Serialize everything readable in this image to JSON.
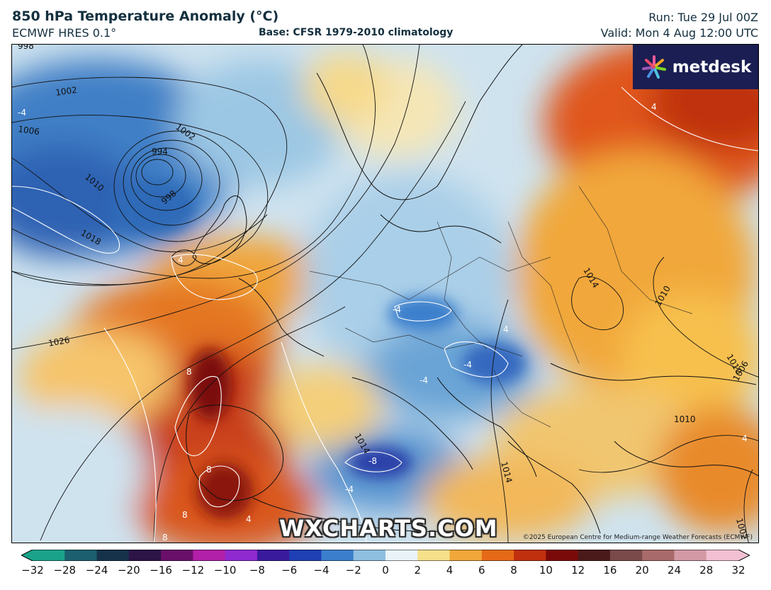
{
  "header": {
    "title": "850 hPa Temperature Anomaly (°C)",
    "model": "ECMWF HRES 0.1°",
    "base": "Base: CFSR 1979-2010 climatology",
    "run": "Run: Tue 29 Jul 00Z",
    "valid": "Valid: Mon 4 Aug 12:00 UTC"
  },
  "logo": {
    "text": "metdesk",
    "icon": "metdesk-star-icon"
  },
  "watermark": "WXCHARTS.COM",
  "copyright": "©2025 European Centre for Medium-range Weather Forecasts (ECMWF)",
  "isobar_labels": [
    "998",
    "1002",
    "1006",
    "1002",
    "994",
    "1010",
    "998",
    "1018",
    "1026",
    "1014",
    "1010",
    "1010",
    "1010",
    "1014",
    "1014",
    "1002",
    "1006"
  ],
  "anomaly_labels": [
    "4",
    "4",
    "-4",
    "8",
    "8",
    "8",
    "8",
    "-4",
    "-4",
    "-8",
    "-4",
    "4",
    "4",
    "-4",
    "4"
  ],
  "colorbar": {
    "ticks": [
      "−32",
      "−28",
      "−24",
      "−20",
      "−16",
      "−12",
      "−10",
      "−8",
      "−6",
      "−4",
      "−2",
      "0",
      "2",
      "4",
      "6",
      "8",
      "10",
      "12",
      "16",
      "20",
      "24",
      "28",
      "32"
    ],
    "colors": [
      "#1aa38a",
      "#1c5f6e",
      "#15324a",
      "#2c1446",
      "#6a0f6a",
      "#b21fa8",
      "#8f2ad0",
      "#3a1a9c",
      "#1f3fb5",
      "#3b7fcc",
      "#8fbfe0",
      "#e9f3f8",
      "#f6e08a",
      "#f1a73a",
      "#e56a17",
      "#c0300f",
      "#7a0a0a",
      "#4a1a1a",
      "#7a4a4a",
      "#a86a6a",
      "#d39aa6",
      "#f2c0d2"
    ]
  }
}
